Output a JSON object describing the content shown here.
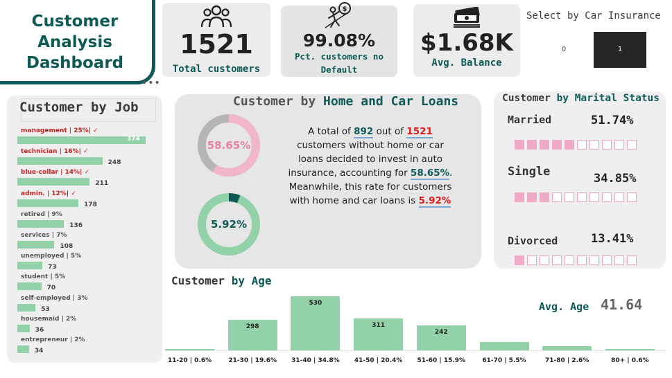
{
  "header": {
    "title_line1": "Customer Analysis",
    "title_line2": "Dashboard",
    "more": "•••"
  },
  "kpis": {
    "total": {
      "value": "1521",
      "label": "Total customers",
      "icon": "people-icon"
    },
    "no_default": {
      "value": "99.08%",
      "label_line1": "Pct. customers no",
      "label_line2": "Default",
      "icon": "debt-free-icon"
    },
    "balance": {
      "value": "$1.68K",
      "label": "Avg. Balance",
      "icon": "money-stack-icon"
    }
  },
  "slicer": {
    "title": "Select by Car Insurance",
    "options": [
      "0",
      "1"
    ],
    "selected": "1"
  },
  "job": {
    "title": "Customer by Job",
    "items": [
      {
        "label": "management | 25%| ✓",
        "count": "374",
        "value": 374,
        "highlight": true
      },
      {
        "label": "technician | 16%| ✓",
        "count": "248",
        "value": 248,
        "highlight": true
      },
      {
        "label": "blue-collar | 14%| ✓",
        "count": "211",
        "value": 211,
        "highlight": true
      },
      {
        "label": "admin. | 12%| ✓",
        "count": "178",
        "value": 178,
        "highlight": true
      },
      {
        "label": "retired | 9%",
        "count": "136",
        "value": 136,
        "highlight": false
      },
      {
        "label": "services | 7%",
        "count": "108",
        "value": 108,
        "highlight": false
      },
      {
        "label": "unemployed | 5%",
        "count": "73",
        "value": 73,
        "highlight": false
      },
      {
        "label": "student | 5%",
        "count": "70",
        "value": 70,
        "highlight": false
      },
      {
        "label": "self-employed | 3%",
        "count": "53",
        "value": 53,
        "highlight": false
      },
      {
        "label": "housemaid | 2%",
        "count": "36",
        "value": 36,
        "highlight": false
      },
      {
        "label": "entrepreneur | 2%",
        "count": "34",
        "value": 34,
        "highlight": false
      }
    ]
  },
  "loans": {
    "title_a": "Customer by ",
    "title_b": "Home and Car Loans",
    "ring1": {
      "label": "58.65%",
      "fraction": 0.5865,
      "color": "#f2b6c9",
      "track": "#b5b5b5",
      "text_color": "#e87fa5"
    },
    "ring2": {
      "label": "5.92%",
      "fraction": 0.0592,
      "color": "#0d5a57",
      "track": "#93d2a8",
      "text_color": "#0d5a57"
    },
    "text": {
      "p1": "A total of ",
      "n1": "892",
      "p2": " out of ",
      "n2": "1521",
      "p3": " customers without home or car loans decided to invest in auto insurance, accounting for ",
      "n3": "58.65%",
      "p4": ". Meanwhile, this rate for customers with home and car loans is ",
      "n4": "5.92%"
    }
  },
  "marital": {
    "title_a": "Customer ",
    "title_b": "by Marital Status",
    "items": [
      {
        "label": "Married",
        "pct": "51.74%",
        "filled": 5
      },
      {
        "label": "Single",
        "pct": "34.85%",
        "filled": 3
      },
      {
        "label": "Divorced",
        "pct": "13.41%",
        "filled": 1
      }
    ]
  },
  "age": {
    "title_a": "Customer ",
    "title_b": "by Age",
    "avg_label": "Avg. Age",
    "avg_value": "41.64"
  },
  "chart_data": {
    "type": "bar",
    "categories": [
      "11-20 | 0.6%",
      "21-30 | 19.6%",
      "31-40 | 34.8%",
      "41-50 | 20.4%",
      "51-60 | 15.9%",
      "61-70 | 5.5%",
      "71-80 | 2.6%",
      "80+ | 0.6%"
    ],
    "values": [
      9,
      298,
      530,
      311,
      242,
      84,
      40,
      9
    ],
    "data_labels": [
      "",
      "298",
      "530",
      "311",
      "242",
      "",
      "",
      ""
    ],
    "title": "Customer by Age",
    "color": "#93d2a8"
  },
  "colors": {
    "accent": "#0d5a57",
    "bar": "#93d2a8",
    "highlight_red": "#cc1f1f",
    "pink": "#eeaac6"
  }
}
